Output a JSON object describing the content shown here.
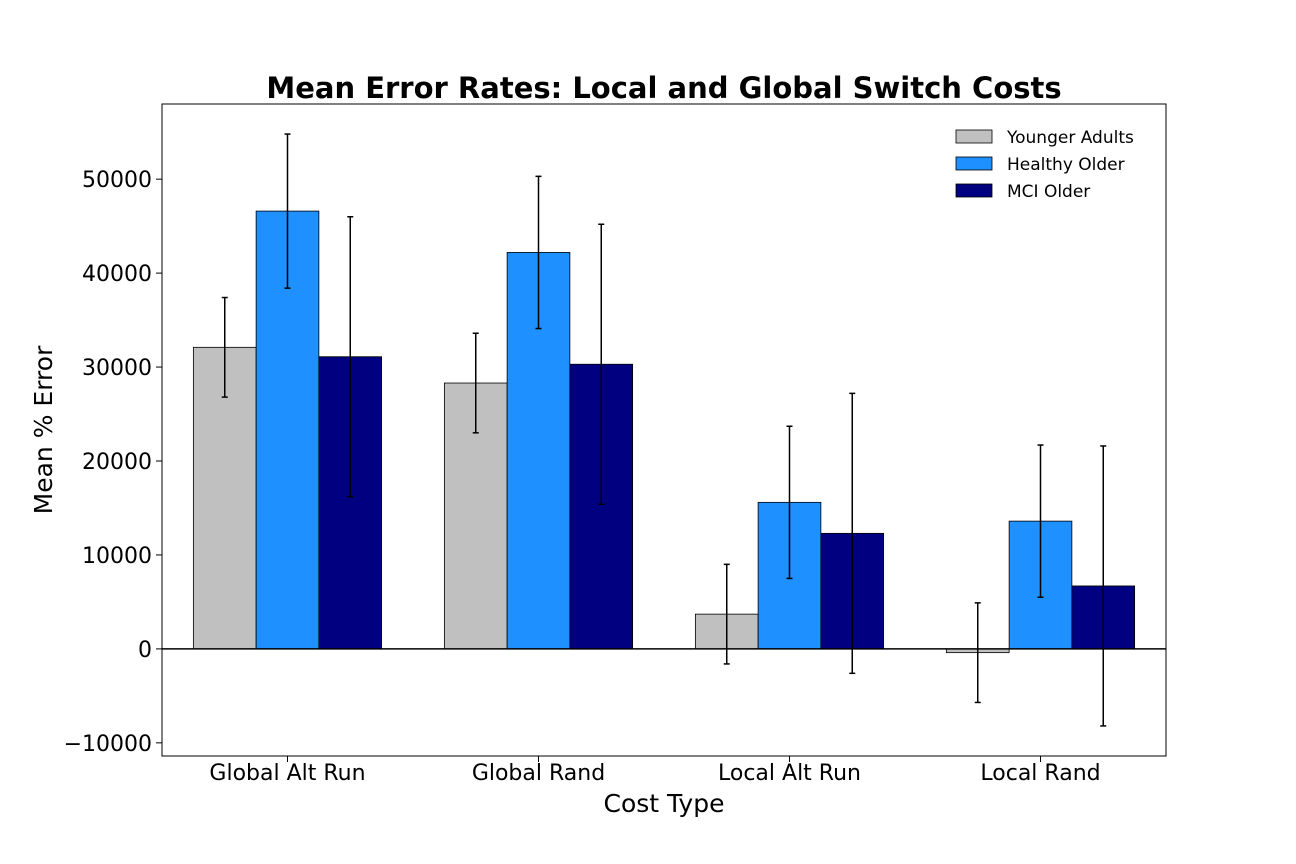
{
  "chart_data": {
    "type": "bar",
    "title": "Mean Error Rates: Local and Global Switch Costs",
    "xlabel": "Cost Type",
    "ylabel": "Mean % Error",
    "ylim": [
      -11400,
      58000
    ],
    "yticks": [
      -10000,
      0,
      10000,
      20000,
      30000,
      40000,
      50000
    ],
    "ytick_labels": [
      "−10000",
      "0",
      "10000",
      "20000",
      "30000",
      "40000",
      "50000"
    ],
    "categories": [
      "Global Alt Run",
      "Global Rand",
      "Local Alt Run",
      "Local Rand"
    ],
    "series": [
      {
        "name": "Younger Adults",
        "color": "#c0c0c0",
        "values": [
          32100,
          28300,
          3700,
          -400
        ],
        "errors": [
          5300,
          5300,
          5300,
          5300
        ]
      },
      {
        "name": "Healthy Older",
        "color": "#1e90ff",
        "values": [
          46600,
          42200,
          15600,
          13600
        ],
        "errors": [
          8200,
          8100,
          8100,
          8100
        ]
      },
      {
        "name": "MCI Older",
        "color": "#000080",
        "values": [
          31100,
          30300,
          12300,
          6700
        ],
        "errors": [
          14900,
          14900,
          14900,
          14900
        ]
      }
    ],
    "grid": false,
    "legend_position": "top-right",
    "zero_line": true
  }
}
